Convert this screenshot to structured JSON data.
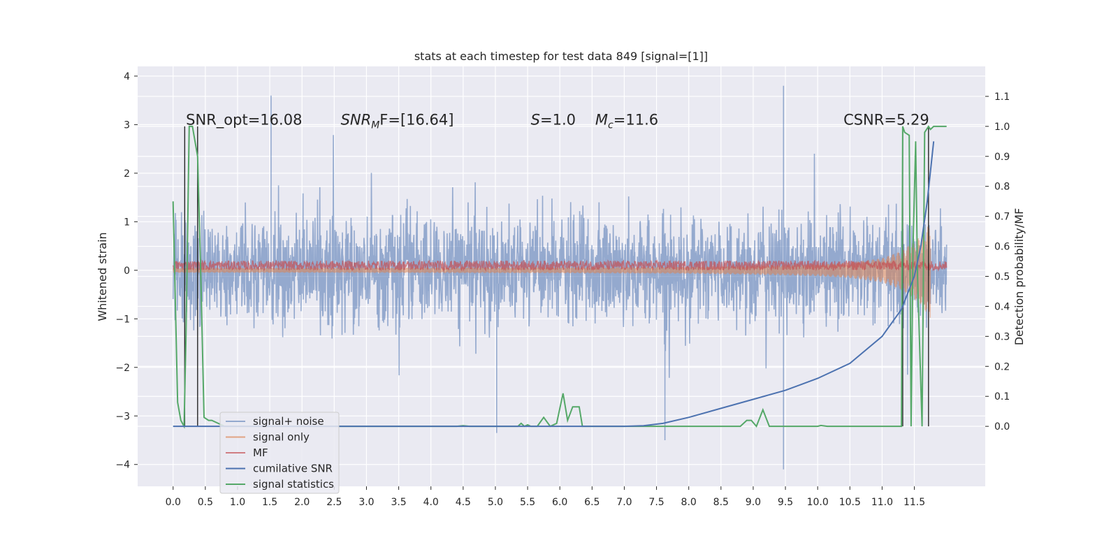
{
  "chart_data": {
    "type": "line",
    "title": "stats at each timestep for test data 849 [signal=[1]]",
    "xlabel": "",
    "ylabel": "Whitened strain",
    "ylabel_right": "Detection probability/MF",
    "xlim": [
      -0.55,
      12.6
    ],
    "ylim": [
      -4.45,
      4.2
    ],
    "ylim_right": [
      -0.2,
      1.2
    ],
    "x_ticks": [
      "0.0",
      "0.5",
      "1.0",
      "1.5",
      "2.0",
      "2.5",
      "3.0",
      "3.5",
      "4.0",
      "4.5",
      "5.0",
      "5.5",
      "6.0",
      "6.5",
      "7.0",
      "7.5",
      "8.0",
      "8.5",
      "9.0",
      "9.5",
      "10.0",
      "10.5",
      "11.0",
      "11.5"
    ],
    "y_ticks": [
      "4",
      "3",
      "2",
      "1",
      "0",
      "−1",
      "−2",
      "−3",
      "−4"
    ],
    "y_ticks_right": [
      "1.1",
      "1.0",
      "0.9",
      "0.8",
      "0.7",
      "0.6",
      "0.5",
      "0.4",
      "0.3",
      "0.2",
      "0.1",
      "0.0"
    ],
    "grid": true,
    "legend_position": "lower-left",
    "annotations": [
      {
        "text": "SNR_opt=16.08",
        "x": 0.2,
        "y": 3.0
      },
      {
        "sym": "SNR",
        "sub": "M",
        "rest": "F=[16.64]",
        "x": 2.6,
        "y": 3.0
      },
      {
        "sym": "S",
        "rest": "=1.0",
        "x": 5.55,
        "y": 3.0
      },
      {
        "sym": "M",
        "sub": "c",
        "rest": "=11.6",
        "x": 6.55,
        "y": 3.0
      },
      {
        "text": "CSNR=5.29",
        "x": 10.4,
        "y": 3.0
      }
    ],
    "series": [
      {
        "name": "signal+ noise",
        "color": "#4c72b0",
        "axis": "left",
        "kind": "noise_band",
        "typical_range": [
          -1.6,
          1.6
        ],
        "peak_range": [
          -4.1,
          3.8
        ],
        "notable_peaks": [
          {
            "x": 1.52,
            "y": 3.6
          },
          {
            "x": 9.47,
            "y": 3.8
          },
          {
            "x": 9.47,
            "y": -4.1
          },
          {
            "x": 7.63,
            "y": -3.5
          },
          {
            "x": 5.02,
            "y": -3.35
          }
        ]
      },
      {
        "name": "signal only",
        "color": "#dd8452",
        "axis": "left",
        "kind": "chirp",
        "x": [
          0.0,
          2.0,
          4.0,
          6.0,
          8.0,
          9.0,
          10.0,
          10.5,
          11.0,
          11.3,
          11.6,
          11.75
        ],
        "amplitude": [
          0.05,
          0.05,
          0.055,
          0.06,
          0.07,
          0.09,
          0.12,
          0.16,
          0.25,
          0.4,
          0.7,
          1.0
        ]
      },
      {
        "name": "MF",
        "color": "#c44e52",
        "axis": "left",
        "kind": "noise_band",
        "typical_range": [
          0.0,
          0.2
        ]
      },
      {
        "name": "cumilative SNR",
        "color": "#4c72b0",
        "axis": "right",
        "x": [
          0.0,
          1.0,
          2.0,
          3.0,
          4.0,
          5.0,
          6.0,
          7.0,
          7.3,
          7.6,
          8.0,
          8.5,
          9.0,
          9.5,
          10.0,
          10.5,
          11.0,
          11.3,
          11.5,
          11.6,
          11.7,
          11.8
        ],
        "y": [
          0.0,
          0.0,
          0.0,
          0.0,
          0.0,
          0.0,
          0.0,
          0.0,
          0.002,
          0.01,
          0.03,
          0.06,
          0.09,
          0.12,
          0.16,
          0.21,
          0.3,
          0.39,
          0.5,
          0.6,
          0.75,
          0.95
        ]
      },
      {
        "name": "signal statistics",
        "color": "#55a868",
        "axis": "right",
        "x": [
          0.0,
          0.07,
          0.12,
          0.17,
          0.2,
          0.25,
          0.3,
          0.38,
          0.43,
          0.48,
          0.55,
          0.6,
          0.7,
          0.8,
          1.0,
          4.4,
          4.5,
          4.6,
          5.35,
          5.4,
          5.45,
          5.5,
          5.55,
          5.65,
          5.75,
          5.85,
          5.95,
          6.05,
          6.12,
          6.2,
          6.3,
          6.35,
          6.45,
          8.8,
          8.9,
          8.97,
          9.05,
          9.15,
          9.25,
          10.0,
          10.05,
          10.15,
          11.3,
          11.32,
          11.35,
          11.42,
          11.45,
          11.48,
          11.52,
          11.55,
          11.62,
          11.66,
          11.72,
          11.75,
          11.8,
          12.0
        ],
        "y": [
          0.75,
          0.08,
          0.02,
          0.0,
          0.3,
          1.0,
          1.0,
          0.9,
          0.5,
          0.03,
          0.02,
          0.02,
          0.01,
          0.0,
          0.0,
          0.0,
          0.002,
          0.0,
          0.0,
          0.01,
          0.0,
          0.005,
          0.0,
          0.0,
          0.03,
          0.0,
          0.01,
          0.11,
          0.02,
          0.065,
          0.065,
          0.0,
          0.0,
          0.0,
          0.02,
          0.02,
          0.0,
          0.055,
          0.0,
          0.0,
          0.003,
          0.0,
          0.0,
          1.0,
          0.98,
          0.97,
          0.0,
          0.6,
          0.95,
          0.5,
          0.0,
          0.98,
          1.0,
          0.99,
          1.0,
          1.0
        ]
      }
    ],
    "vertical_markers": [
      0.18,
      0.38,
      11.32,
      11.72
    ]
  }
}
